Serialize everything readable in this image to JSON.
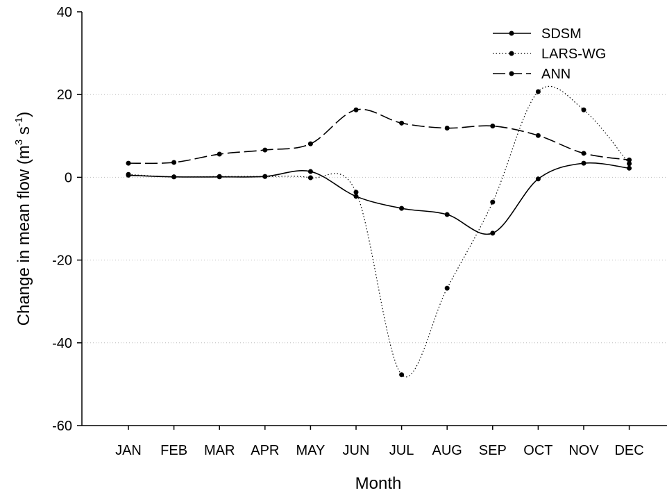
{
  "chart_data": {
    "type": "line",
    "y_label": {
      "text": "Change in mean flow (m",
      "sup1": "3",
      "mid": " s",
      "sup2": "-1",
      "end": ")"
    },
    "x_label": "Month",
    "categories": [
      "JAN",
      "FEB",
      "MAR",
      "APR",
      "MAY",
      "JUN",
      "JUL",
      "AUG",
      "SEP",
      "OCT",
      "NOV",
      "DEC"
    ],
    "series": [
      {
        "name": "SDSM",
        "color": "#000000",
        "dash": "solid",
        "values": [
          0.5,
          0.1,
          0.1,
          0.2,
          1.4,
          -4.6,
          -7.5,
          -9,
          -13.5,
          -0.4,
          3.4,
          2.2
        ]
      },
      {
        "name": "LARS-WG",
        "color": "#000000",
        "dash": "dotted",
        "values": [
          0.7,
          0.1,
          0.2,
          0.2,
          -0.1,
          -3.6,
          -47.7,
          -26.8,
          -6,
          20.7,
          16.3,
          3.3
        ]
      },
      {
        "name": "ANN",
        "color": "#000000",
        "dash": "dashed",
        "values": [
          3.4,
          3.6,
          5.6,
          6.6,
          8.1,
          16.3,
          13.1,
          11.9,
          12.4,
          10.1,
          5.8,
          4.2
        ]
      }
    ],
    "ylim": [
      -60,
      40
    ],
    "yticks": [
      -60,
      -40,
      -20,
      0,
      20,
      40
    ],
    "grid": true,
    "legend": "top-right"
  }
}
